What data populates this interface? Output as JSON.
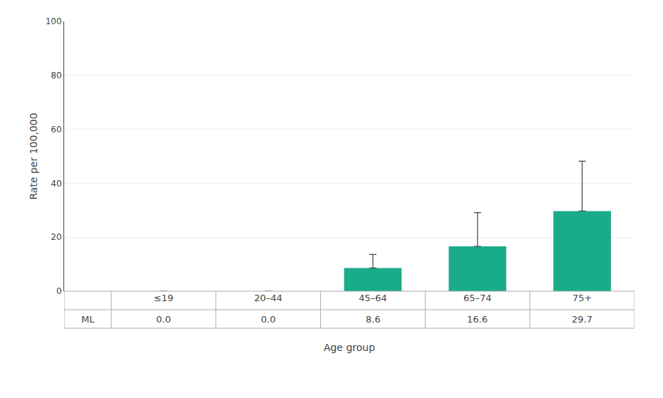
{
  "chart_data": {
    "type": "bar",
    "categories": [
      "≤19",
      "20–44",
      "45–64",
      "65–74",
      "75+"
    ],
    "series": [
      {
        "name": "ML",
        "color": "#1aab8a",
        "values": [
          0.0,
          0.0,
          8.6,
          16.6,
          29.7
        ],
        "value_labels": [
          "0.0",
          "0.0",
          "8.6",
          "16.6",
          "29.7"
        ],
        "errors_upper": [
          0.0,
          0.0,
          5.0,
          12.5,
          18.5
        ]
      }
    ],
    "xlabel": "Age group",
    "ylabel": "Rate per 100,000",
    "ylim": [
      0,
      100
    ],
    "yticks": [
      0,
      20,
      40,
      60,
      80,
      100
    ],
    "grid": true
  }
}
